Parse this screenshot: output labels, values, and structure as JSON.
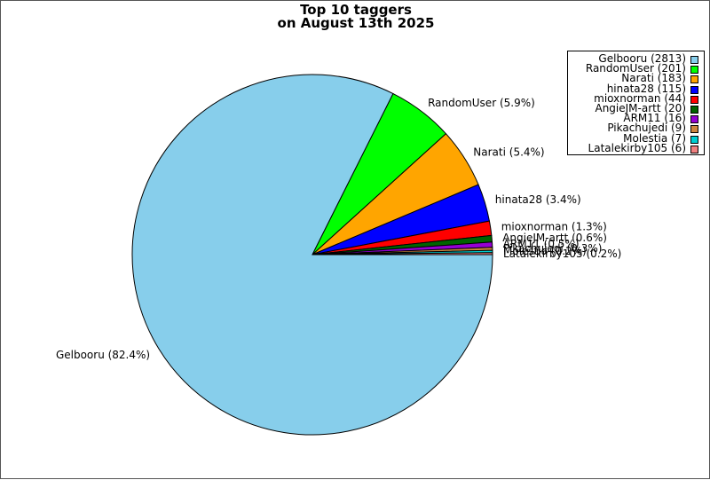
{
  "chart_data": {
    "type": "pie",
    "title_line1": "Top 10 taggers",
    "title_line2": "on August 13th 2025",
    "legend_position": "top-right",
    "slices": [
      {
        "name": "Gelbooru",
        "value": 2813,
        "label": "Gelbooru (82.4%)",
        "legend": "Gelbooru (2813)",
        "color": "#87ceeb"
      },
      {
        "name": "RandomUser",
        "value": 201,
        "label": "RandomUser (5.9%)",
        "legend": "RandomUser (201)",
        "color": "#00ff00"
      },
      {
        "name": "Narati",
        "value": 183,
        "label": "Narati (5.4%)",
        "legend": "Narati (183)",
        "color": "#ffa500"
      },
      {
        "name": "hinata28",
        "value": 115,
        "label": "hinata28 (3.4%)",
        "legend": "hinata28 (115)",
        "color": "#0000ff"
      },
      {
        "name": "mioxnorman",
        "value": 44,
        "label": "mioxnorman (1.3%)",
        "legend": "mioxnorman (44)",
        "color": "#ff0000"
      },
      {
        "name": "AngieJM-artt",
        "value": 20,
        "label": "AngieJM-artt (0.6%)",
        "legend": "AngieJM-artt (20)",
        "color": "#006400"
      },
      {
        "name": "ARM11",
        "value": 16,
        "label": "ARM11 (0.5%)",
        "legend": "ARM11 (16)",
        "color": "#9400d3"
      },
      {
        "name": "Pikachujedi",
        "value": 9,
        "label": "Pikachujedi (0.3%)",
        "legend": "Pikachujedi (9)",
        "color": "#cd853f"
      },
      {
        "name": "Molestia",
        "value": 7,
        "label": "Molestia (0.2%)",
        "legend": "Molestia (7)",
        "color": "#00ced1"
      },
      {
        "name": "Latalekirby105",
        "value": 6,
        "label": "Latalekirby105 (0.2%)",
        "legend": "Latalekirby105 (6)",
        "color": "#f08080"
      }
    ]
  }
}
